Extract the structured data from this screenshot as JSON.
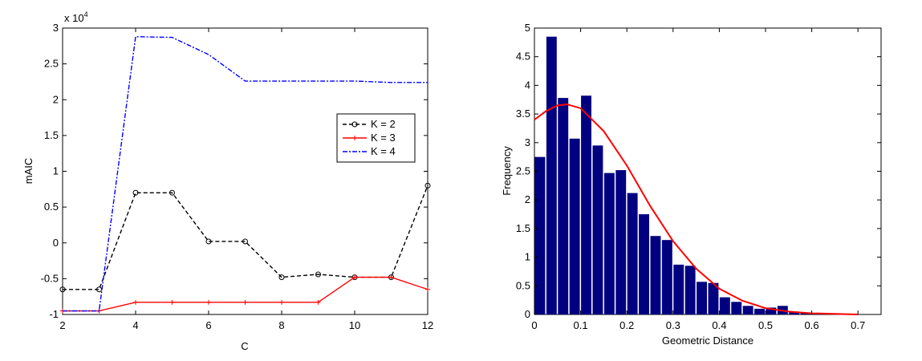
{
  "chart_data": [
    {
      "type": "line",
      "xlabel": "C",
      "ylabel": "mAIC",
      "y_multiplier_label": "x 10",
      "y_multiplier_exponent": "4",
      "xlim": [
        2,
        12
      ],
      "ylim": [
        -1,
        3
      ],
      "xticks": [
        2,
        4,
        6,
        8,
        10,
        12
      ],
      "yticks": [
        -1,
        -0.5,
        0,
        0.5,
        1,
        1.5,
        2,
        2.5,
        3
      ],
      "ytick_labels": [
        "-1",
        "-0.5",
        "0",
        "0.5",
        "1",
        "1.5",
        "2",
        "2.5",
        "3"
      ],
      "legend_position": "center-right",
      "series": [
        {
          "name": "K = 2",
          "color": "#000000",
          "linestyle": "dashed",
          "marker": "circle",
          "x": [
            2,
            3,
            4,
            5,
            6,
            7,
            8,
            9,
            10,
            11,
            12
          ],
          "y": [
            -0.65,
            -0.65,
            0.7,
            0.7,
            0.02,
            0.02,
            -0.48,
            -0.44,
            -0.48,
            -0.48,
            0.8
          ]
        },
        {
          "name": "K = 3",
          "color": "#ff0000",
          "linestyle": "solid",
          "marker": "plus",
          "x": [
            2,
            3,
            4,
            5,
            6,
            7,
            8,
            9,
            10,
            11,
            12
          ],
          "y": [
            -0.95,
            -0.95,
            -0.83,
            -0.83,
            -0.83,
            -0.83,
            -0.83,
            -0.83,
            -0.48,
            -0.48,
            -0.65
          ]
        },
        {
          "name": "K = 4",
          "color": "#0000ff",
          "linestyle": "dashdot",
          "marker": "none",
          "x": [
            2,
            3,
            4,
            5,
            6,
            7,
            8,
            9,
            10,
            11,
            12
          ],
          "y": [
            -0.95,
            -0.95,
            2.88,
            2.87,
            2.63,
            2.26,
            2.26,
            2.26,
            2.26,
            2.24,
            2.24
          ]
        }
      ]
    },
    {
      "type": "bar",
      "xlabel": "Geometric Distance",
      "ylabel": "Frequency",
      "xlim": [
        0,
        0.75
      ],
      "ylim": [
        0,
        5
      ],
      "xticks": [
        0,
        0.1,
        0.2,
        0.3,
        0.4,
        0.5,
        0.6,
        0.7
      ],
      "yticks": [
        0,
        0.5,
        1,
        1.5,
        2,
        2.5,
        3,
        3.5,
        4,
        4.5,
        5
      ],
      "bar_color": "#000080",
      "curve_color": "#ff0000",
      "bin_width": 0.025,
      "bins": [
        {
          "x": 0.0125,
          "y": 2.75
        },
        {
          "x": 0.0375,
          "y": 4.85
        },
        {
          "x": 0.0625,
          "y": 3.78
        },
        {
          "x": 0.0875,
          "y": 3.07
        },
        {
          "x": 0.1125,
          "y": 3.82
        },
        {
          "x": 0.1375,
          "y": 2.95
        },
        {
          "x": 0.1625,
          "y": 2.47
        },
        {
          "x": 0.1875,
          "y": 2.52
        },
        {
          "x": 0.2125,
          "y": 2.12
        },
        {
          "x": 0.2375,
          "y": 1.75
        },
        {
          "x": 0.2625,
          "y": 1.37
        },
        {
          "x": 0.2875,
          "y": 1.3
        },
        {
          "x": 0.3125,
          "y": 0.87
        },
        {
          "x": 0.3375,
          "y": 0.85
        },
        {
          "x": 0.3625,
          "y": 0.57
        },
        {
          "x": 0.3875,
          "y": 0.55
        },
        {
          "x": 0.4125,
          "y": 0.3
        },
        {
          "x": 0.4375,
          "y": 0.22
        },
        {
          "x": 0.4625,
          "y": 0.15
        },
        {
          "x": 0.4875,
          "y": 0.1
        },
        {
          "x": 0.5125,
          "y": 0.12
        },
        {
          "x": 0.5375,
          "y": 0.15
        },
        {
          "x": 0.5625,
          "y": 0.05
        },
        {
          "x": 0.5875,
          "y": 0.03
        },
        {
          "x": 0.6125,
          "y": 0.02
        }
      ],
      "fit_curve": {
        "x": [
          0,
          0.025,
          0.05,
          0.07,
          0.1,
          0.15,
          0.2,
          0.25,
          0.3,
          0.35,
          0.4,
          0.45,
          0.5,
          0.55,
          0.6,
          0.65,
          0.7
        ],
        "y": [
          3.4,
          3.55,
          3.65,
          3.67,
          3.6,
          3.2,
          2.6,
          1.9,
          1.28,
          0.8,
          0.45,
          0.24,
          0.11,
          0.05,
          0.02,
          0.01,
          0.0
        ]
      }
    }
  ]
}
